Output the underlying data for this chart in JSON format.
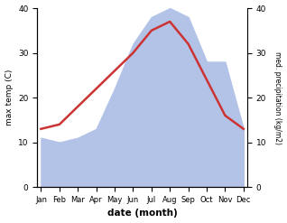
{
  "months": [
    "Jan",
    "Feb",
    "Mar",
    "Apr",
    "May",
    "Jun",
    "Jul",
    "Aug",
    "Sep",
    "Oct",
    "Nov",
    "Dec"
  ],
  "month_indices": [
    0,
    1,
    2,
    3,
    4,
    5,
    6,
    7,
    8,
    9,
    10,
    11
  ],
  "max_temp": [
    13,
    14,
    18,
    22,
    26,
    30,
    35,
    37,
    32,
    24,
    16,
    13
  ],
  "precipitation": [
    11,
    10,
    11,
    13,
    22,
    32,
    38,
    40,
    38,
    28,
    28,
    13
  ],
  "temp_color": "#cc3333",
  "precip_color": "#b3c3e8",
  "ylim_left": [
    0,
    40
  ],
  "ylim_right": [
    0,
    40
  ],
  "xlabel": "date (month)",
  "ylabel_left": "max temp (C)",
  "ylabel_right": "med. precipitation (kg/m2)",
  "bg_color": "#ffffff",
  "figsize": [
    3.18,
    2.47
  ],
  "dpi": 100
}
